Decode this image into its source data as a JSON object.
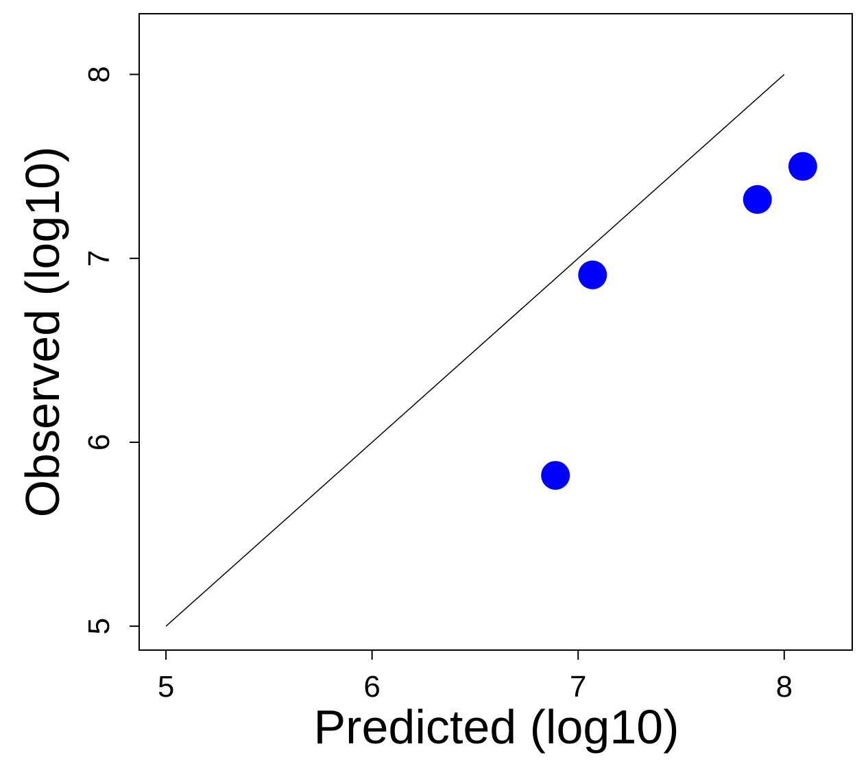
{
  "chart_data": {
    "type": "scatter",
    "xlabel": "Predicted (log10)",
    "ylabel": "Observed (log10)",
    "xlim": [
      4.87,
      8.33
    ],
    "ylim": [
      4.87,
      8.33
    ],
    "xticks": [
      5,
      6,
      7,
      8
    ],
    "yticks": [
      5,
      6,
      7,
      8
    ],
    "x_tick_labels": [
      "5",
      "6",
      "7",
      "8"
    ],
    "y_tick_labels": [
      "5",
      "6",
      "7",
      "8"
    ],
    "grid": false,
    "reference_line": {
      "x": [
        5,
        8
      ],
      "y": [
        5,
        8
      ],
      "color": "#000000"
    },
    "points": [
      {
        "x": 6.89,
        "y": 5.82
      },
      {
        "x": 7.07,
        "y": 6.91
      },
      {
        "x": 7.87,
        "y": 7.32
      },
      {
        "x": 8.09,
        "y": 7.5
      }
    ],
    "point_color": "#0000ff"
  }
}
